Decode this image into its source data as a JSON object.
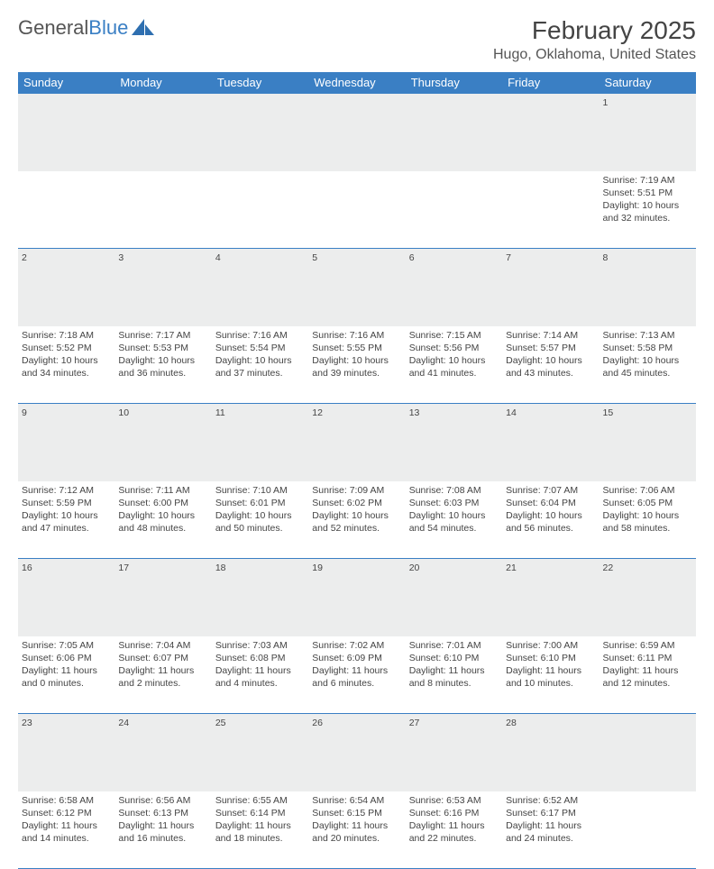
{
  "brand": {
    "part1": "General",
    "part2": "Blue"
  },
  "title": "February 2025",
  "location": "Hugo, Oklahoma, United States",
  "colors": {
    "header_bg": "#3a7fc4",
    "daynum_bg": "#eceded",
    "text": "#444444",
    "border": "#3a7fc4"
  },
  "day_headers": [
    "Sunday",
    "Monday",
    "Tuesday",
    "Wednesday",
    "Thursday",
    "Friday",
    "Saturday"
  ],
  "weeks": [
    {
      "nums": [
        "",
        "",
        "",
        "",
        "",
        "",
        "1"
      ],
      "cells": [
        null,
        null,
        null,
        null,
        null,
        null,
        {
          "sunrise": "Sunrise: 7:19 AM",
          "sunset": "Sunset: 5:51 PM",
          "day1": "Daylight: 10 hours",
          "day2": "and 32 minutes."
        }
      ]
    },
    {
      "nums": [
        "2",
        "3",
        "4",
        "5",
        "6",
        "7",
        "8"
      ],
      "cells": [
        {
          "sunrise": "Sunrise: 7:18 AM",
          "sunset": "Sunset: 5:52 PM",
          "day1": "Daylight: 10 hours",
          "day2": "and 34 minutes."
        },
        {
          "sunrise": "Sunrise: 7:17 AM",
          "sunset": "Sunset: 5:53 PM",
          "day1": "Daylight: 10 hours",
          "day2": "and 36 minutes."
        },
        {
          "sunrise": "Sunrise: 7:16 AM",
          "sunset": "Sunset: 5:54 PM",
          "day1": "Daylight: 10 hours",
          "day2": "and 37 minutes."
        },
        {
          "sunrise": "Sunrise: 7:16 AM",
          "sunset": "Sunset: 5:55 PM",
          "day1": "Daylight: 10 hours",
          "day2": "and 39 minutes."
        },
        {
          "sunrise": "Sunrise: 7:15 AM",
          "sunset": "Sunset: 5:56 PM",
          "day1": "Daylight: 10 hours",
          "day2": "and 41 minutes."
        },
        {
          "sunrise": "Sunrise: 7:14 AM",
          "sunset": "Sunset: 5:57 PM",
          "day1": "Daylight: 10 hours",
          "day2": "and 43 minutes."
        },
        {
          "sunrise": "Sunrise: 7:13 AM",
          "sunset": "Sunset: 5:58 PM",
          "day1": "Daylight: 10 hours",
          "day2": "and 45 minutes."
        }
      ]
    },
    {
      "nums": [
        "9",
        "10",
        "11",
        "12",
        "13",
        "14",
        "15"
      ],
      "cells": [
        {
          "sunrise": "Sunrise: 7:12 AM",
          "sunset": "Sunset: 5:59 PM",
          "day1": "Daylight: 10 hours",
          "day2": "and 47 minutes."
        },
        {
          "sunrise": "Sunrise: 7:11 AM",
          "sunset": "Sunset: 6:00 PM",
          "day1": "Daylight: 10 hours",
          "day2": "and 48 minutes."
        },
        {
          "sunrise": "Sunrise: 7:10 AM",
          "sunset": "Sunset: 6:01 PM",
          "day1": "Daylight: 10 hours",
          "day2": "and 50 minutes."
        },
        {
          "sunrise": "Sunrise: 7:09 AM",
          "sunset": "Sunset: 6:02 PM",
          "day1": "Daylight: 10 hours",
          "day2": "and 52 minutes."
        },
        {
          "sunrise": "Sunrise: 7:08 AM",
          "sunset": "Sunset: 6:03 PM",
          "day1": "Daylight: 10 hours",
          "day2": "and 54 minutes."
        },
        {
          "sunrise": "Sunrise: 7:07 AM",
          "sunset": "Sunset: 6:04 PM",
          "day1": "Daylight: 10 hours",
          "day2": "and 56 minutes."
        },
        {
          "sunrise": "Sunrise: 7:06 AM",
          "sunset": "Sunset: 6:05 PM",
          "day1": "Daylight: 10 hours",
          "day2": "and 58 minutes."
        }
      ]
    },
    {
      "nums": [
        "16",
        "17",
        "18",
        "19",
        "20",
        "21",
        "22"
      ],
      "cells": [
        {
          "sunrise": "Sunrise: 7:05 AM",
          "sunset": "Sunset: 6:06 PM",
          "day1": "Daylight: 11 hours",
          "day2": "and 0 minutes."
        },
        {
          "sunrise": "Sunrise: 7:04 AM",
          "sunset": "Sunset: 6:07 PM",
          "day1": "Daylight: 11 hours",
          "day2": "and 2 minutes."
        },
        {
          "sunrise": "Sunrise: 7:03 AM",
          "sunset": "Sunset: 6:08 PM",
          "day1": "Daylight: 11 hours",
          "day2": "and 4 minutes."
        },
        {
          "sunrise": "Sunrise: 7:02 AM",
          "sunset": "Sunset: 6:09 PM",
          "day1": "Daylight: 11 hours",
          "day2": "and 6 minutes."
        },
        {
          "sunrise": "Sunrise: 7:01 AM",
          "sunset": "Sunset: 6:10 PM",
          "day1": "Daylight: 11 hours",
          "day2": "and 8 minutes."
        },
        {
          "sunrise": "Sunrise: 7:00 AM",
          "sunset": "Sunset: 6:10 PM",
          "day1": "Daylight: 11 hours",
          "day2": "and 10 minutes."
        },
        {
          "sunrise": "Sunrise: 6:59 AM",
          "sunset": "Sunset: 6:11 PM",
          "day1": "Daylight: 11 hours",
          "day2": "and 12 minutes."
        }
      ]
    },
    {
      "nums": [
        "23",
        "24",
        "25",
        "26",
        "27",
        "28",
        ""
      ],
      "cells": [
        {
          "sunrise": "Sunrise: 6:58 AM",
          "sunset": "Sunset: 6:12 PM",
          "day1": "Daylight: 11 hours",
          "day2": "and 14 minutes."
        },
        {
          "sunrise": "Sunrise: 6:56 AM",
          "sunset": "Sunset: 6:13 PM",
          "day1": "Daylight: 11 hours",
          "day2": "and 16 minutes."
        },
        {
          "sunrise": "Sunrise: 6:55 AM",
          "sunset": "Sunset: 6:14 PM",
          "day1": "Daylight: 11 hours",
          "day2": "and 18 minutes."
        },
        {
          "sunrise": "Sunrise: 6:54 AM",
          "sunset": "Sunset: 6:15 PM",
          "day1": "Daylight: 11 hours",
          "day2": "and 20 minutes."
        },
        {
          "sunrise": "Sunrise: 6:53 AM",
          "sunset": "Sunset: 6:16 PM",
          "day1": "Daylight: 11 hours",
          "day2": "and 22 minutes."
        },
        {
          "sunrise": "Sunrise: 6:52 AM",
          "sunset": "Sunset: 6:17 PM",
          "day1": "Daylight: 11 hours",
          "day2": "and 24 minutes."
        },
        null
      ]
    }
  ]
}
